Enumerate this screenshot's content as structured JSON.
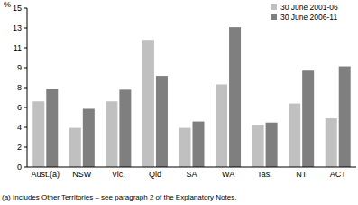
{
  "chart_data": {
    "type": "bar",
    "y_label": "%",
    "categories": [
      "Aust.(a)",
      "NSW",
      "Vic.",
      "Qld",
      "SA",
      "WA",
      "Tas.",
      "NT",
      "ACT"
    ],
    "series": [
      {
        "name": "30 June 2001-06",
        "color": "#c0c0c0",
        "values": [
          6.2,
          3.7,
          6.2,
          12.0,
          3.7,
          7.8,
          4.0,
          6.0,
          4.6
        ]
      },
      {
        "name": "30 June 2006-11",
        "color": "#7f7f7f",
        "values": [
          7.4,
          5.5,
          7.3,
          8.6,
          4.3,
          13.2,
          4.2,
          9.1,
          9.5
        ]
      }
    ],
    "ylim": [
      0,
      15
    ],
    "yticks": [
      0,
      {
        "value": 1.875,
        "label": "2"
      },
      {
        "value": 3.75,
        "label": "4"
      },
      {
        "value": 5.625,
        "label": "6"
      },
      {
        "value": 7.5,
        "label": "8"
      },
      {
        "value": 9.375,
        "label": "9"
      },
      {
        "value": 11.25,
        "label": "11"
      },
      {
        "value": 13.125,
        "label": "13"
      },
      15
    ],
    "grid": false,
    "legend": "top-right",
    "annotations": [
      "(a) Includes Other Territories – see paragraph 2 of the Explanatory Notes."
    ]
  }
}
